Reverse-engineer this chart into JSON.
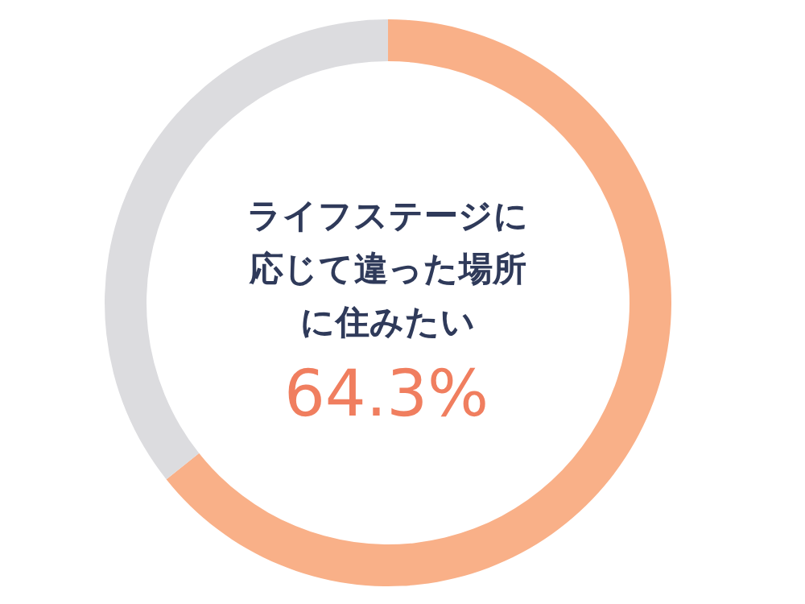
{
  "chart_data": {
    "type": "donut",
    "title": "ライフステージに応じて違った場所に住みたい",
    "categories": [
      null,
      null
    ],
    "values": [
      64.3,
      35.7
    ],
    "colors": [
      "#f9b088",
      "#dcdcdf"
    ],
    "value_labels": [
      "64.3%",
      null
    ]
  }
}
